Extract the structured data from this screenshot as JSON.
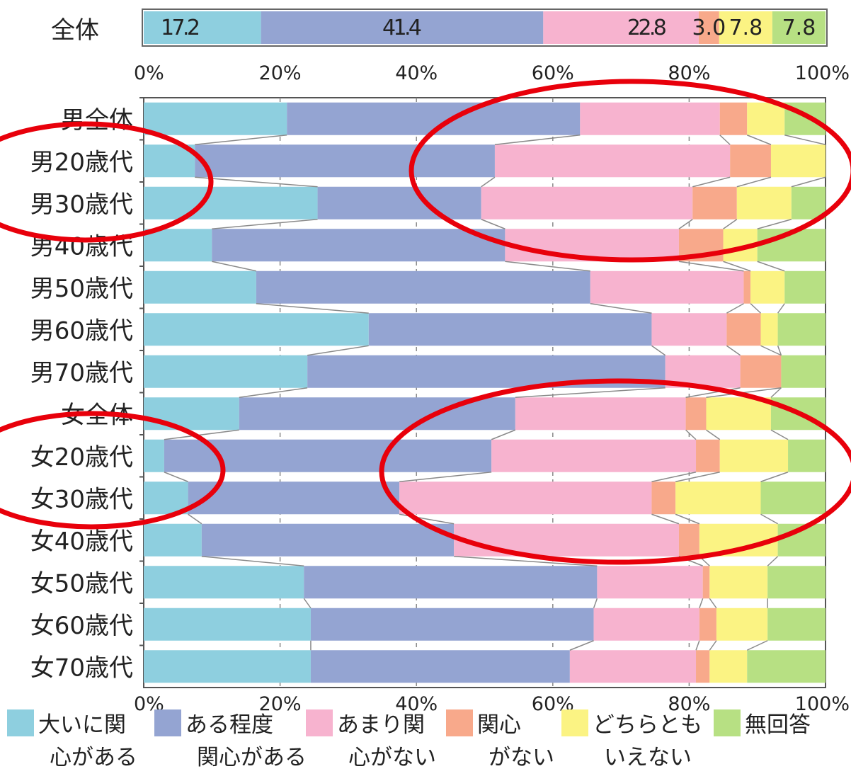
{
  "chart_data": {
    "type": "bar",
    "orientation": "horizontal",
    "stacked": true,
    "xlim": [
      0,
      100
    ],
    "x_ticks": [
      "0%",
      "20%",
      "40%",
      "60%",
      "80%",
      "100%"
    ],
    "grid": true,
    "legend_position": "bottom",
    "overall": {
      "category": "全体",
      "values": [
        17.2,
        41.4,
        22.8,
        3.0,
        7.8,
        7.8
      ],
      "labels": [
        "17.2",
        "41.4",
        "22.8",
        "3.0",
        "7.8",
        "7.8"
      ]
    },
    "categories": [
      "男全体",
      "男20歳代",
      "男30歳代",
      "男40歳代",
      "男50歳代",
      "男60歳代",
      "男70歳代",
      "女全体",
      "女20歳代",
      "女30歳代",
      "女40歳代",
      "女50歳代",
      "女60歳代",
      "女70歳代"
    ],
    "series": [
      {
        "name": "大いに関心がある",
        "legend": [
          "大いに関",
          "心がある"
        ],
        "color": "#8ecfdf",
        "values": [
          21.0,
          7.5,
          25.5,
          10.0,
          16.5,
          33.0,
          24.0,
          14.0,
          3.0,
          6.5,
          8.5,
          23.5,
          24.5,
          24.5
        ]
      },
      {
        "name": "ある程度関心がある",
        "legend": [
          "ある程度",
          "関心がある"
        ],
        "color": "#94a4d2",
        "values": [
          43.0,
          44.0,
          24.0,
          43.0,
          49.0,
          41.5,
          52.5,
          40.5,
          48.0,
          31.0,
          37.0,
          43.0,
          41.5,
          38.0
        ]
      },
      {
        "name": "あまり関心がない",
        "legend": [
          "あまり関",
          "心がない"
        ],
        "color": "#f7b3cf",
        "values": [
          20.5,
          34.5,
          31.0,
          25.5,
          22.5,
          11.0,
          11.0,
          25.0,
          30.0,
          37.0,
          33.0,
          15.5,
          15.5,
          18.5
        ]
      },
      {
        "name": "関心がない",
        "legend": [
          "関心",
          "がない"
        ],
        "color": "#f8a98b",
        "values": [
          4.0,
          6.0,
          6.5,
          6.5,
          1.0,
          5.0,
          6.0,
          3.0,
          3.5,
          3.5,
          3.0,
          1.0,
          2.5,
          2.0
        ]
      },
      {
        "name": "どちらともいえない",
        "legend": [
          "どちらとも",
          "いえない"
        ],
        "color": "#fbf383",
        "values": [
          5.5,
          8.0,
          8.0,
          5.0,
          5.0,
          2.5,
          0.0,
          9.5,
          10.0,
          12.5,
          11.5,
          8.5,
          7.5,
          5.5
        ]
      },
      {
        "name": "無回答",
        "legend": [
          "無回答"
        ],
        "color": "#b7e083",
        "values": [
          6.0,
          0.0,
          5.0,
          10.0,
          6.0,
          7.0,
          6.5,
          8.0,
          5.5,
          9.5,
          7.0,
          8.5,
          8.5,
          11.5
        ]
      }
    ]
  }
}
